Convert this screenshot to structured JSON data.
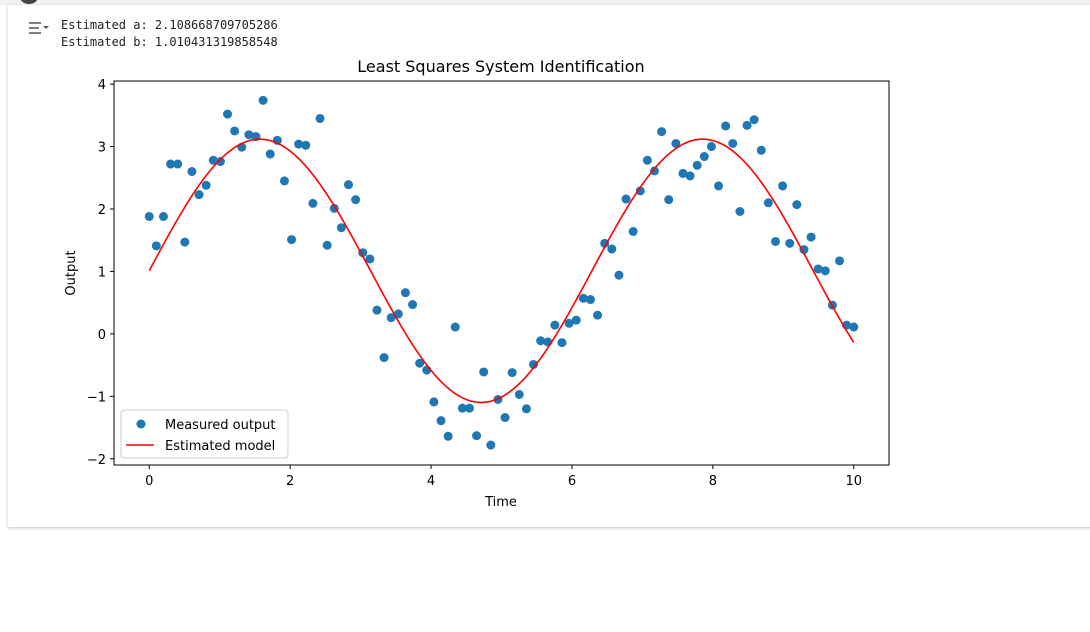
{
  "output": {
    "line_a": "Estimated a: 2.108668709705286",
    "line_b": "Estimated b: 1.010431319858548"
  },
  "colors": {
    "scatter": "#1f77b4",
    "model": "#ff0000"
  },
  "chart_data": {
    "type": "scatter+line",
    "title": "Least Squares System Identification",
    "xlabel": "Time",
    "ylabel": "Output",
    "xlim": [
      -0.5,
      10.5
    ],
    "ylim": [
      -2.1,
      4.05
    ],
    "xticks": [
      0,
      2,
      4,
      6,
      8,
      10
    ],
    "yticks": [
      -2,
      -1,
      0,
      1,
      2,
      3,
      4
    ],
    "legend": {
      "placement": "lower-left",
      "entries": [
        "Measured output",
        "Estimated model"
      ]
    },
    "measured": {
      "name": "Measured output",
      "x_start": 0,
      "x_end": 10,
      "count": 100,
      "y": [
        1.88,
        1.41,
        1.88,
        2.72,
        2.72,
        1.47,
        2.6,
        2.23,
        2.38,
        2.78,
        2.76,
        3.52,
        3.25,
        2.99,
        3.19,
        3.16,
        3.74,
        2.88,
        3.1,
        2.45,
        1.51,
        3.04,
        3.02,
        2.09,
        3.45,
        1.42,
        2.01,
        1.7,
        2.39,
        2.15,
        1.3,
        1.2,
        0.38,
        -0.38,
        0.26,
        0.32,
        0.66,
        0.47,
        -0.47,
        -0.58,
        -1.09,
        -1.39,
        -1.64,
        0.11,
        -1.19,
        -1.19,
        -1.63,
        -0.61,
        -1.78,
        -1.05,
        -1.34,
        -0.62,
        -0.97,
        -1.2,
        -0.49,
        -0.11,
        -0.13,
        0.14,
        -0.14,
        0.17,
        0.22,
        0.57,
        0.55,
        0.3,
        1.45,
        1.36,
        0.94,
        2.16,
        1.64,
        2.29,
        2.78,
        2.61,
        3.24,
        2.15,
        3.05,
        2.57,
        2.53,
        2.7,
        2.84,
        3.0,
        2.37,
        3.33,
        3.05,
        1.96,
        3.34,
        3.43,
        2.94,
        2.1,
        1.48,
        2.37,
        1.45,
        2.07,
        1.35,
        1.55,
        1.04,
        1.01,
        0.46,
        1.17,
        0.14,
        0.11
      ]
    },
    "model": {
      "name": "Estimated model",
      "formula": "a*sin(t)+b",
      "a": 2.108668709705286,
      "b": 1.010431319858548
    }
  }
}
